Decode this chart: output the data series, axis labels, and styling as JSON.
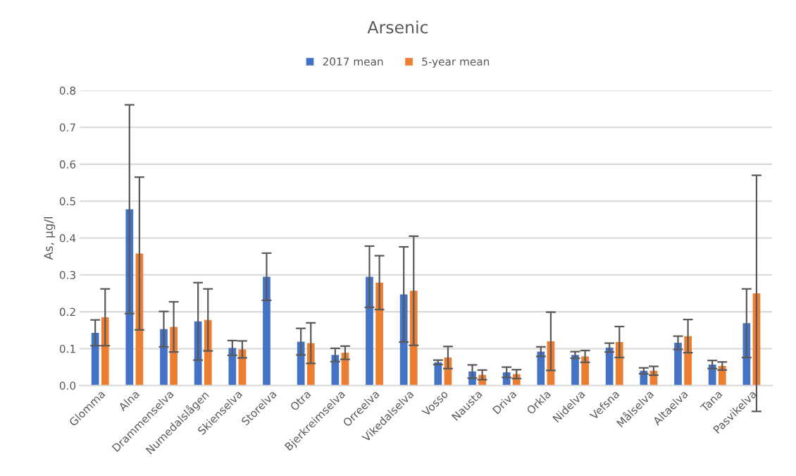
{
  "chart_data": {
    "type": "bar",
    "title": "Arsenic",
    "ylabel": "As, µg/l",
    "categories": [
      "Glomma",
      "Alna",
      "Drammenselva",
      "Numedalslågen",
      "Skienselva",
      "Storelva",
      "Otra",
      "Bjerkreimselva",
      "Orreelva",
      "Vikedalselva",
      "Vosso",
      "Nausta",
      "Driva",
      "Orkla",
      "Nidelva",
      "Vefsna",
      "Målselva",
      "Altaelva",
      "Tana",
      "Pasvikelva"
    ],
    "series": [
      {
        "name": "2017 mean",
        "color": "#4472c4",
        "values": [
          0.143,
          0.478,
          0.153,
          0.174,
          0.102,
          0.295,
          0.119,
          0.083,
          0.295,
          0.247,
          0.063,
          0.038,
          0.036,
          0.092,
          0.083,
          0.103,
          0.04,
          0.116,
          0.057,
          0.169
        ],
        "errors": [
          0.035,
          0.283,
          0.048,
          0.105,
          0.02,
          0.064,
          0.036,
          0.018,
          0.083,
          0.129,
          0.006,
          0.018,
          0.014,
          0.013,
          0.009,
          0.012,
          0.008,
          0.018,
          0.011,
          0.093
        ]
      },
      {
        "name": "5-year mean",
        "color": "#ed7d31",
        "values": [
          0.185,
          0.358,
          0.159,
          0.178,
          0.098,
          null,
          0.115,
          0.089,
          0.279,
          0.257,
          0.076,
          0.029,
          0.031,
          0.12,
          0.079,
          0.118,
          0.04,
          0.134,
          0.053,
          0.25
        ],
        "errors": [
          0.077,
          0.207,
          0.068,
          0.084,
          0.023,
          null,
          0.055,
          0.018,
          0.073,
          0.148,
          0.03,
          0.013,
          0.012,
          0.079,
          0.016,
          0.042,
          0.012,
          0.045,
          0.011,
          0.32
        ]
      }
    ],
    "ylim": [
      0,
      0.8
    ],
    "yticks": [
      {
        "value": 0,
        "label": "0.0"
      },
      {
        "value": 0.1,
        "label": "0.1"
      },
      {
        "value": 0.2,
        "label": "0.2"
      },
      {
        "value": 0.3,
        "label": "0.3"
      },
      {
        "value": 0.4,
        "label": "0.4"
      },
      {
        "value": 0.5,
        "label": "0.5"
      },
      {
        "value": 0.6,
        "label": "0.6"
      },
      {
        "value": 0.7,
        "label": "0.7"
      },
      {
        "value": 0.8,
        "label": "0.8"
      }
    ],
    "grid": "y",
    "legend": "top"
  }
}
